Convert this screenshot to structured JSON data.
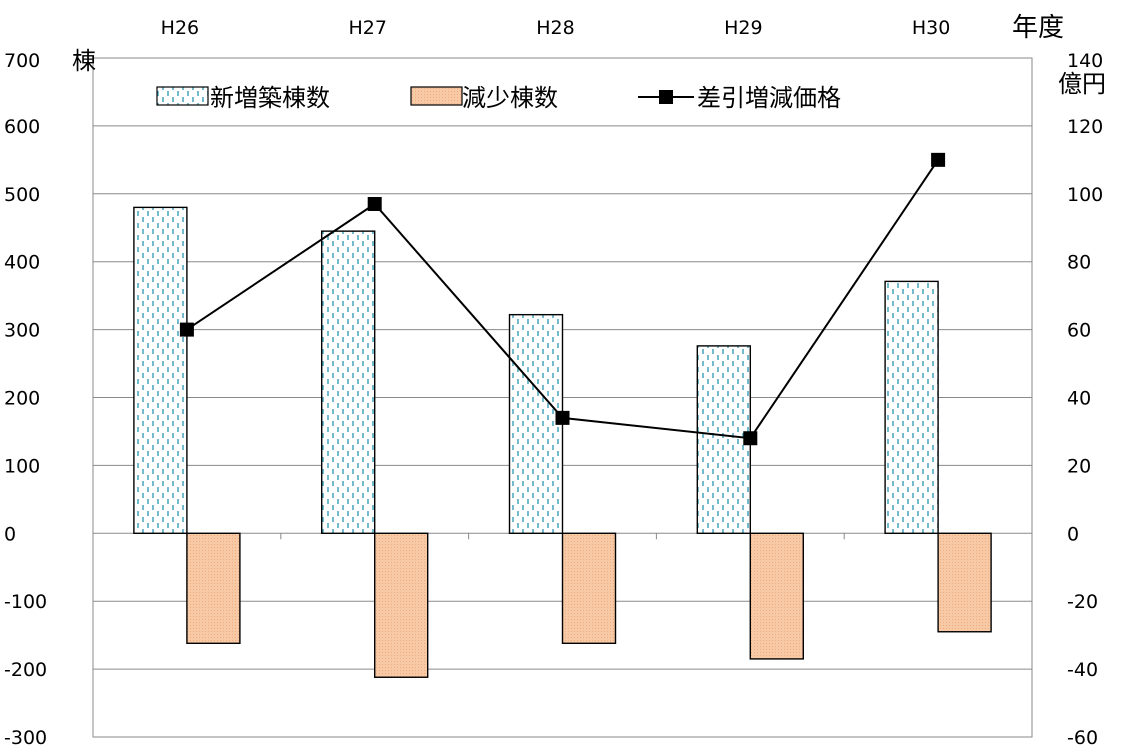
{
  "chart_data": {
    "type": "bar",
    "categories": [
      "H26",
      "H27",
      "H28",
      "H29",
      "H30"
    ],
    "x_unit_label": "年度",
    "y_left": {
      "unit_label": "棟",
      "min": -300,
      "max": 700,
      "step": 100
    },
    "y_right": {
      "unit_label": "億円",
      "min": -60,
      "max": 140,
      "step": 20
    },
    "grid": true,
    "legend_position": "top",
    "series": [
      {
        "name": "新増築棟数",
        "type": "bar",
        "axis": "left",
        "values": [
          480,
          445,
          322,
          276,
          371
        ],
        "fill": "#ffffff",
        "pattern_color": "#4fa8c0"
      },
      {
        "name": "減少棟数",
        "type": "bar",
        "axis": "left",
        "values": [
          -162,
          -212,
          -162,
          -185,
          -145
        ],
        "fill": "#f7c9a4"
      },
      {
        "name": "差引増減価格",
        "type": "line",
        "axis": "right",
        "values": [
          60,
          97,
          34,
          28,
          110
        ],
        "color": "#000000"
      }
    ]
  }
}
